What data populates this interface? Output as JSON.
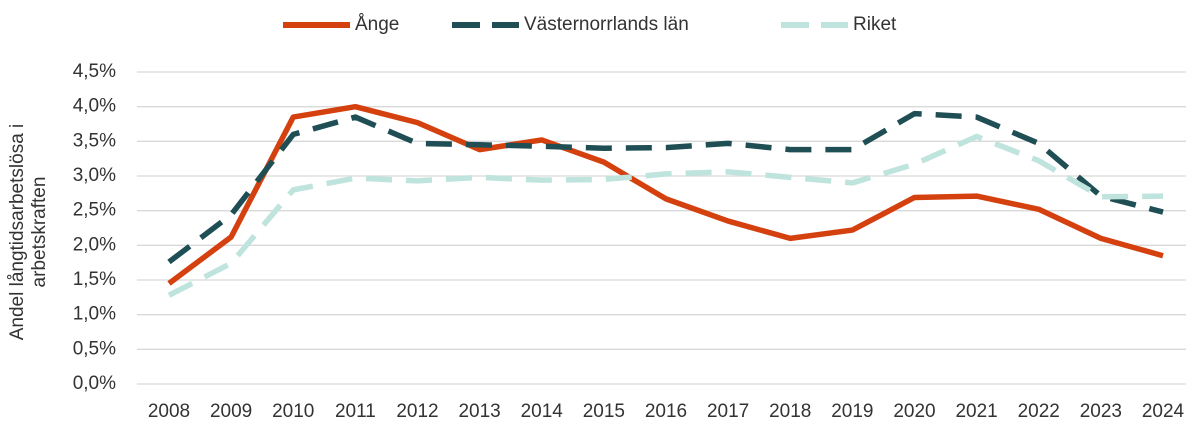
{
  "chart_data": {
    "type": "line",
    "ylabel": [
      "Andel långtidsarbetslösa i",
      "arbetskraften"
    ],
    "categories": [
      "2008",
      "2009",
      "2010",
      "2011",
      "2012",
      "2013",
      "2014",
      "2015",
      "2016",
      "2017",
      "2018",
      "2019",
      "2020",
      "2021",
      "2022",
      "2023",
      "2024"
    ],
    "series": [
      {
        "name": "Ånge",
        "color": "#d4410f",
        "style": "solid",
        "values": [
          1.45,
          2.12,
          3.85,
          4.0,
          3.77,
          3.38,
          3.52,
          3.2,
          2.67,
          2.35,
          2.1,
          2.22,
          2.69,
          2.71,
          2.52,
          2.1,
          1.85
        ]
      },
      {
        "name": "Västernorrlands län",
        "color": "#1f4e55",
        "style": "dashed",
        "values": [
          1.76,
          2.44,
          3.6,
          3.85,
          3.47,
          3.45,
          3.43,
          3.4,
          3.41,
          3.47,
          3.38,
          3.38,
          3.9,
          3.85,
          3.47,
          2.71,
          2.48
        ]
      },
      {
        "name": "Riket",
        "color": "#bfe3dd",
        "style": "dashed",
        "values": [
          1.28,
          1.74,
          2.8,
          2.97,
          2.93,
          2.98,
          2.94,
          2.95,
          3.03,
          3.06,
          2.98,
          2.9,
          3.17,
          3.57,
          3.22,
          2.7,
          2.71
        ]
      }
    ],
    "ylim": [
      0,
      4.5
    ],
    "yticks": [
      {
        "value": 0,
        "label": "0,0%"
      },
      {
        "value": 0.5,
        "label": "0,5%"
      },
      {
        "value": 1,
        "label": "1,0%"
      },
      {
        "value": 1.5,
        "label": "1,5%"
      },
      {
        "value": 2,
        "label": "2,0%"
      },
      {
        "value": 2.5,
        "label": "2,5%"
      },
      {
        "value": 3,
        "label": "3,0%"
      },
      {
        "value": 3.5,
        "label": "3,5%"
      },
      {
        "value": 4,
        "label": "4,0%"
      },
      {
        "value": 4.5,
        "label": "4,5%"
      }
    ],
    "grid": true,
    "legend": "top"
  }
}
